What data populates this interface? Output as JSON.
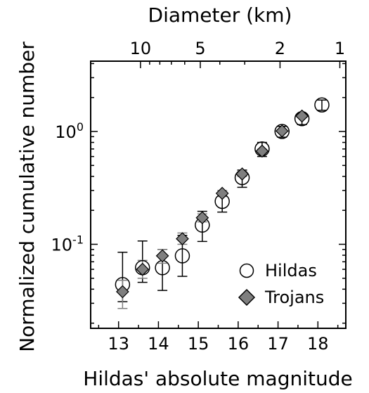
{
  "chart_data": {
    "type": "scatter",
    "xlabel": "Hildas' absolute magnitude",
    "ylabel": "Normalized cumulative number",
    "top_axis_label": "Diameter (km)",
    "xlim": [
      12.3,
      18.7
    ],
    "ylim": [
      0.018,
      4.2
    ],
    "y_scale": "log",
    "grid": false,
    "legend_position": "bottom-right",
    "x_ticks": [
      {
        "value": 13,
        "label": "13"
      },
      {
        "value": 14,
        "label": "14"
      },
      {
        "value": 15,
        "label": "15"
      },
      {
        "value": 16,
        "label": "16"
      },
      {
        "value": 17,
        "label": "17"
      },
      {
        "value": 18,
        "label": "18"
      }
    ],
    "y_ticks": [
      {
        "value": 1,
        "base": "10",
        "exp": "0"
      },
      {
        "value": 0.1,
        "base": "10",
        "exp": "-1"
      }
    ],
    "top_ticks": [
      {
        "magnitude": 13.55,
        "label": "10"
      },
      {
        "magnitude": 15.05,
        "label": "5"
      },
      {
        "magnitude": 17.05,
        "label": "2"
      },
      {
        "magnitude": 18.55,
        "label": "1"
      }
    ],
    "series": [
      {
        "name": "Hildas",
        "marker": "circle",
        "color": "#000000",
        "errorbar_color": "#000000",
        "points": [
          {
            "x": 13.1,
            "y": 0.044,
            "lo": 0.031,
            "hi": 0.085
          },
          {
            "x": 13.6,
            "y": 0.062,
            "lo": 0.046,
            "hi": 0.107
          },
          {
            "x": 14.1,
            "y": 0.062,
            "lo": 0.039,
            "hi": 0.09
          },
          {
            "x": 14.6,
            "y": 0.079,
            "lo": 0.052,
            "hi": 0.12
          },
          {
            "x": 15.1,
            "y": 0.148,
            "lo": 0.106,
            "hi": 0.196
          },
          {
            "x": 15.6,
            "y": 0.24,
            "lo": 0.193,
            "hi": 0.29
          },
          {
            "x": 16.1,
            "y": 0.39,
            "lo": 0.32,
            "hi": 0.455
          },
          {
            "x": 16.6,
            "y": 0.7,
            "lo": 0.6,
            "hi": 0.8
          },
          {
            "x": 17.1,
            "y": 1.0,
            "lo": 0.89,
            "hi": 1.11
          },
          {
            "x": 17.6,
            "y": 1.3,
            "lo": 1.15,
            "hi": 1.44
          },
          {
            "x": 18.1,
            "y": 1.72,
            "lo": 1.54,
            "hi": 1.9
          }
        ]
      },
      {
        "name": "Trojans",
        "marker": "diamond",
        "color": "#7f7f7f",
        "errorbar_color": "#808080",
        "points": [
          {
            "x": 13.1,
            "y": 0.038,
            "lo": 0.027,
            "hi": 0.048
          },
          {
            "x": 13.6,
            "y": 0.06,
            "lo": 0.05,
            "hi": 0.072
          },
          {
            "x": 14.1,
            "y": 0.079,
            "lo": 0.068,
            "hi": 0.09
          },
          {
            "x": 14.6,
            "y": 0.112,
            "lo": 0.1,
            "hi": 0.126
          },
          {
            "x": 15.1,
            "y": 0.172,
            "lo": 0.158,
            "hi": 0.186
          },
          {
            "x": 15.6,
            "y": 0.283,
            "lo": 0.265,
            "hi": 0.3
          },
          {
            "x": 16.1,
            "y": 0.42,
            "lo": 0.4,
            "hi": 0.442
          },
          {
            "x": 16.6,
            "y": 0.67,
            "lo": 0.645,
            "hi": 0.695
          },
          {
            "x": 17.1,
            "y": 1.01,
            "lo": 0.985,
            "hi": 1.04
          },
          {
            "x": 17.6,
            "y": 1.37,
            "lo": 1.34,
            "hi": 1.4
          }
        ]
      }
    ]
  }
}
